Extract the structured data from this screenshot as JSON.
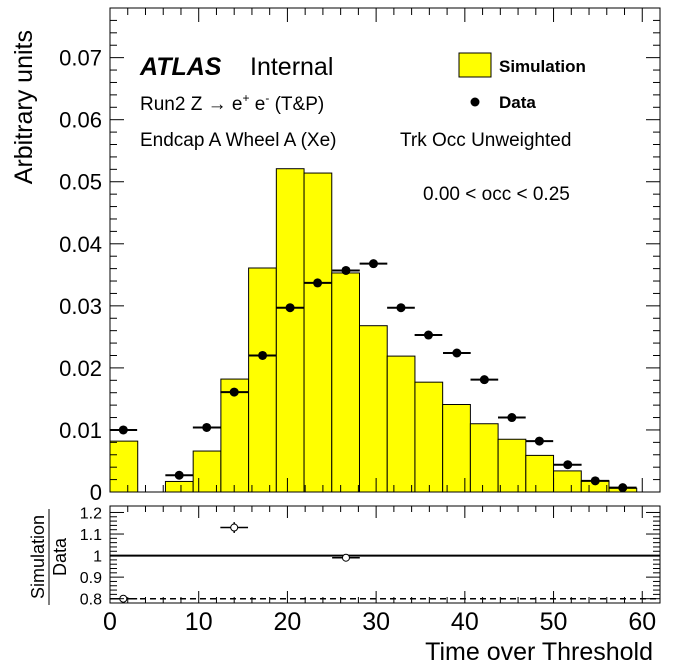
{
  "chart_data": [
    {
      "type": "histogram",
      "ylabel": "Arbitrary units",
      "xlim": [
        0,
        62
      ],
      "ylim": [
        0,
        0.078
      ],
      "yticks": [
        "0",
        "0.01",
        "0.02",
        "0.03",
        "0.04",
        "0.05",
        "0.06",
        "0.07"
      ],
      "ytick_values": [
        0,
        0.01,
        0.02,
        0.03,
        0.04,
        0.05,
        0.06,
        0.07
      ],
      "annotations": {
        "atlas": "ATLAS",
        "internal": "Internal",
        "run_prefix": "Run2 Z ",
        "arrow": "→",
        "e1": "e",
        "plus": "+",
        "e2": " e",
        "minus": "-",
        "tp": " (T&P)",
        "region": "Endcap A Wheel A (Xe)",
        "weighting": "Trk Occ Unweighted",
        "occ_range": "0.00 < occ < 0.25"
      },
      "legend": {
        "placement": "top-right",
        "entries": [
          "Simulation",
          "Data"
        ]
      },
      "simulation_color": "#ffff00",
      "series": [
        {
          "name": "Simulation",
          "style": "filled-step",
          "bin_edges": [
            0,
            3.125,
            6.25,
            9.375,
            12.5,
            15.625,
            18.75,
            21.875,
            25,
            28.125,
            31.25,
            34.375,
            37.5,
            40.625,
            43.75,
            46.875,
            50,
            53.125,
            56.25,
            59.375
          ],
          "values": [
            0.0082,
            0,
            0.0017,
            0.0066,
            0.0182,
            0.0361,
            0.0521,
            0.0514,
            0.0353,
            0.0268,
            0.0219,
            0.0177,
            0.0141,
            0.011,
            0.0085,
            0.0059,
            0.0034,
            0.0018,
            0.0006
          ]
        },
        {
          "name": "Data",
          "style": "points",
          "x": [
            1.5,
            7.8,
            10.9,
            14.0,
            17.2,
            20.3,
            23.4,
            26.6,
            29.7,
            32.8,
            35.9,
            39.1,
            42.2,
            45.3,
            48.4,
            51.6,
            54.7,
            57.8
          ],
          "values": [
            0.01,
            0.0027,
            0.0104,
            0.0161,
            0.022,
            0.0297,
            0.0337,
            0.0357,
            0.0368,
            0.0297,
            0.0253,
            0.0224,
            0.0181,
            0.012,
            0.0082,
            0.0044,
            0.0018,
            0.0007
          ],
          "xerr": 1.56
        }
      ]
    },
    {
      "type": "scatter",
      "ylabel_num": "Simulation",
      "ylabel_den": "Data",
      "xlabel": "Time over Threshold",
      "xlim": [
        0,
        62
      ],
      "ylim": [
        0.78,
        1.23
      ],
      "xticks": [
        "0",
        "10",
        "20",
        "30",
        "40",
        "50",
        "60"
      ],
      "xtick_values": [
        0,
        10,
        20,
        30,
        40,
        50,
        60
      ],
      "yticks": [
        "0.8",
        "0.9",
        "1",
        "1.1",
        "1.2"
      ],
      "ytick_values": [
        0.8,
        0.9,
        1.0,
        1.1,
        1.2
      ],
      "reference_line": 1.0,
      "dashed_line": 0.8,
      "points": [
        {
          "x": 1.5,
          "y": 0.8,
          "xerr": 1.56,
          "yerr": 0.01
        },
        {
          "x": 14.0,
          "y": 1.13,
          "xerr": 1.56,
          "yerr": 0.025
        },
        {
          "x": 26.6,
          "y": 0.99,
          "xerr": 1.56,
          "yerr": 0.007
        }
      ]
    }
  ]
}
